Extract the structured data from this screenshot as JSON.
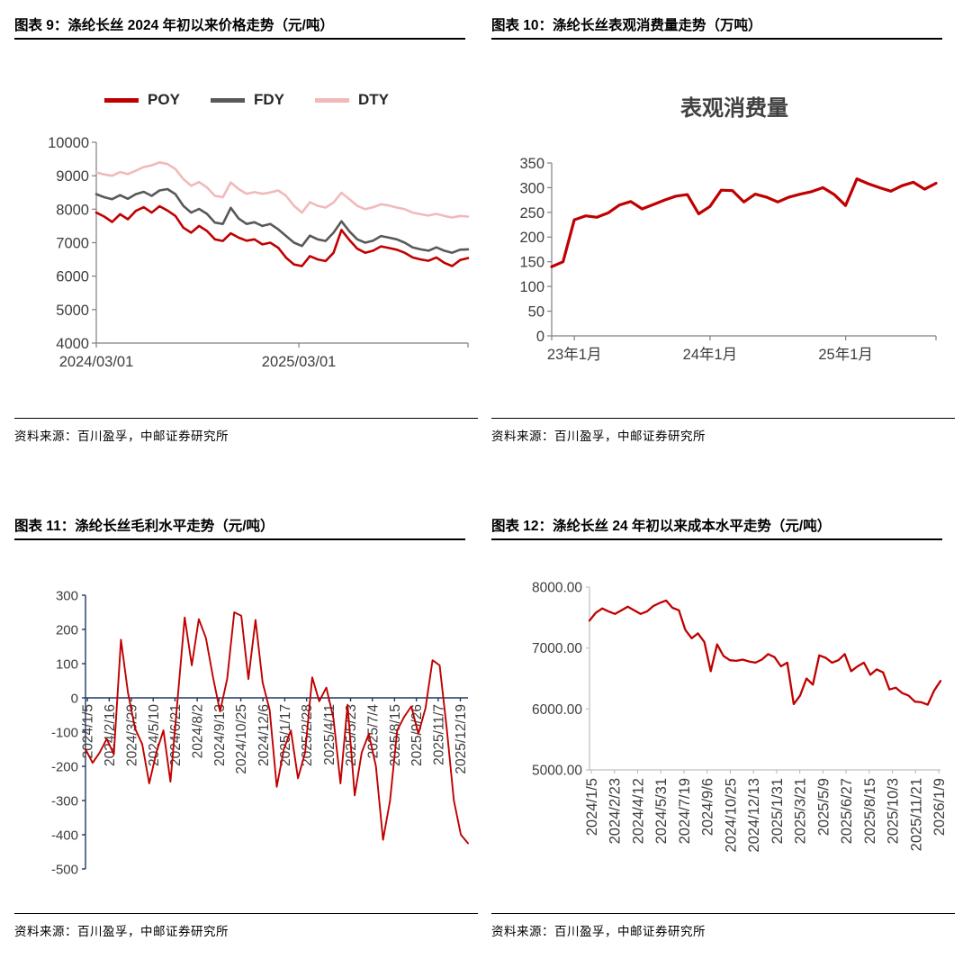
{
  "chart_data": [
    {
      "id": "figure-9",
      "caption": "图表 9：涤纶长丝 2024 年初以来价格走势（元/吨）",
      "source": "资料来源：百川盈孚，中邮证券研究所",
      "type": "line",
      "legend_position": "top",
      "ylim": [
        4000,
        10000
      ],
      "yticks": [
        10000,
        9000,
        8000,
        7000,
        6000,
        5000,
        4000
      ],
      "ytick_labels": [
        "10000",
        "9000",
        "8000",
        "7000",
        "6000",
        "5000",
        "4000"
      ],
      "xticks": [
        {
          "f": 0.0,
          "label": "2024/03/01"
        },
        {
          "f": 0.545,
          "label": "2025/03/01"
        },
        {
          "f": 1.0,
          "label": ""
        }
      ],
      "series": [
        {
          "name": "POY",
          "color": "#C00000",
          "values": [
            7900,
            7780,
            7620,
            7850,
            7700,
            7950,
            8060,
            7900,
            8090,
            7960,
            7800,
            7450,
            7300,
            7500,
            7350,
            7100,
            7050,
            7280,
            7150,
            7060,
            7100,
            6950,
            7000,
            6850,
            6550,
            6350,
            6300,
            6600,
            6500,
            6450,
            6700,
            7380,
            7080,
            6820,
            6700,
            6760,
            6890,
            6840,
            6790,
            6700,
            6560,
            6500,
            6460,
            6560,
            6400,
            6300,
            6480,
            6540
          ]
        },
        {
          "name": "FDY",
          "color": "#595959",
          "values": [
            8450,
            8360,
            8300,
            8420,
            8310,
            8450,
            8520,
            8400,
            8560,
            8600,
            8450,
            8100,
            7900,
            8010,
            7860,
            7600,
            7560,
            8040,
            7720,
            7560,
            7610,
            7500,
            7560,
            7400,
            7200,
            7000,
            6900,
            7210,
            7100,
            7050,
            7300,
            7640,
            7340,
            7100,
            7000,
            7060,
            7200,
            7150,
            7100,
            7000,
            6860,
            6800,
            6760,
            6860,
            6760,
            6700,
            6790,
            6800
          ]
        },
        {
          "name": "DTY",
          "color": "#F2B9B9",
          "values": [
            9100,
            9040,
            9000,
            9110,
            9050,
            9150,
            9260,
            9310,
            9400,
            9350,
            9200,
            8900,
            8700,
            8810,
            8650,
            8400,
            8360,
            8800,
            8600,
            8460,
            8510,
            8460,
            8500,
            8560,
            8400,
            8100,
            7900,
            8210,
            8100,
            8050,
            8200,
            8490,
            8300,
            8100,
            8000,
            8060,
            8150,
            8110,
            8050,
            8000,
            7900,
            7850,
            7810,
            7860,
            7800,
            7750,
            7800,
            7780
          ]
        }
      ]
    },
    {
      "id": "figure-10",
      "caption": "图表 10：涤纶长丝表观消费量走势（万吨）",
      "source": "资料来源：百川盈孚，中邮证券研究所",
      "type": "line",
      "inner_title": "表观消费量",
      "ylim": [
        0,
        350
      ],
      "yticks": [
        350,
        300,
        250,
        200,
        150,
        100,
        50,
        0
      ],
      "ytick_labels": [
        "350",
        "300",
        "250",
        "200",
        "150",
        "100",
        "50",
        "0"
      ],
      "xticks": [
        {
          "f": 0.0,
          "label": ""
        },
        {
          "f": 0.059,
          "label": "23年1月"
        },
        {
          "f": 0.412,
          "label": "24年1月"
        },
        {
          "f": 0.765,
          "label": "25年1月"
        },
        {
          "f": 1.0,
          "label": ""
        }
      ],
      "series": [
        {
          "name": "表观消费量",
          "color": "#C00000",
          "values": [
            140,
            150,
            235,
            243,
            240,
            249,
            265,
            272,
            257,
            266,
            275,
            283,
            286,
            247,
            262,
            295,
            294,
            271,
            287,
            281,
            271,
            281,
            287,
            292,
            300,
            286,
            264,
            318,
            308,
            300,
            293,
            304,
            311,
            297,
            309
          ]
        }
      ]
    },
    {
      "id": "figure-11",
      "caption": "图表 11：涤纶长丝毛利水平走势（元/吨）",
      "source": "资料来源：百川盈孚，中邮证券研究所",
      "type": "line",
      "ylim": [
        -500,
        300
      ],
      "baseline": 0,
      "yticks": [
        300,
        200,
        100,
        0,
        -100,
        -200,
        -300,
        -400,
        -500
      ],
      "ytick_labels": [
        "300",
        "200",
        "100",
        "0",
        "-100",
        "-200",
        "-300",
        "-400",
        "-500"
      ],
      "xticks": [
        {
          "f": 0.005,
          "label": "2024/1/5"
        },
        {
          "f": 0.062,
          "label": "2024/2/16"
        },
        {
          "f": 0.12,
          "label": "2024/3/29"
        },
        {
          "f": 0.177,
          "label": "2024/5/10"
        },
        {
          "f": 0.234,
          "label": "2024/6/21"
        },
        {
          "f": 0.292,
          "label": "2024/8/2"
        },
        {
          "f": 0.349,
          "label": "2024/9/13"
        },
        {
          "f": 0.406,
          "label": "2024/10/25"
        },
        {
          "f": 0.464,
          "label": "2024/12/6"
        },
        {
          "f": 0.521,
          "label": "2025/1/17"
        },
        {
          "f": 0.578,
          "label": "2025/2/28"
        },
        {
          "f": 0.636,
          "label": "2025/4/11"
        },
        {
          "f": 0.693,
          "label": "2025/5/23"
        },
        {
          "f": 0.75,
          "label": "2025/7/4"
        },
        {
          "f": 0.808,
          "label": "2025/8/15"
        },
        {
          "f": 0.865,
          "label": "2025/9/26"
        },
        {
          "f": 0.922,
          "label": "2025/11/7"
        },
        {
          "f": 0.98,
          "label": "2025/12/19"
        }
      ],
      "series": [
        {
          "name": "毛利",
          "color": "#C00000",
          "values": [
            -150,
            -190,
            -160,
            -120,
            -165,
            170,
            15,
            -90,
            -135,
            -250,
            -160,
            -95,
            -245,
            -5,
            235,
            95,
            230,
            175,
            60,
            -40,
            55,
            250,
            240,
            55,
            228,
            45,
            -35,
            -260,
            -150,
            -95,
            -235,
            -160,
            60,
            -10,
            30,
            -60,
            -250,
            -20,
            -285,
            -160,
            -105,
            -200,
            -415,
            -300,
            -95,
            -55,
            -25,
            -105,
            -30,
            110,
            95,
            -90,
            -300,
            -400,
            -425
          ]
        }
      ]
    },
    {
      "id": "figure-12",
      "caption": "图表 12：涤纶长丝 24 年初以来成本水平走势（元/吨）",
      "source": "资料来源：百川盈孚，中邮证券研究所",
      "type": "line",
      "ylim": [
        5000,
        8000
      ],
      "yticks": [
        8000,
        7000,
        6000,
        5000
      ],
      "ytick_labels": [
        "8000.00",
        "7000.00",
        "6000.00",
        "5000.00"
      ],
      "xticks": [
        {
          "f": 0.005,
          "label": "2024/1/5"
        },
        {
          "f": 0.071,
          "label": "2024/2/23"
        },
        {
          "f": 0.137,
          "label": "2024/4/12"
        },
        {
          "f": 0.203,
          "label": "2024/5/31"
        },
        {
          "f": 0.269,
          "label": "2024/7/19"
        },
        {
          "f": 0.335,
          "label": "2024/9/6"
        },
        {
          "f": 0.401,
          "label": "2024/10/25"
        },
        {
          "f": 0.467,
          "label": "2024/12/13"
        },
        {
          "f": 0.533,
          "label": "2025/1/31"
        },
        {
          "f": 0.599,
          "label": "2025/3/21"
        },
        {
          "f": 0.665,
          "label": "2025/5/9"
        },
        {
          "f": 0.731,
          "label": "2025/6/27"
        },
        {
          "f": 0.797,
          "label": "2025/8/15"
        },
        {
          "f": 0.863,
          "label": "2025/10/3"
        },
        {
          "f": 0.929,
          "label": "2025/11/21"
        },
        {
          "f": 0.995,
          "label": "2026/1/9"
        }
      ],
      "series": [
        {
          "name": "成本",
          "color": "#C00000",
          "values": [
            7450,
            7580,
            7650,
            7600,
            7560,
            7620,
            7680,
            7620,
            7560,
            7600,
            7690,
            7740,
            7780,
            7660,
            7620,
            7300,
            7160,
            7240,
            7100,
            6620,
            7060,
            6870,
            6800,
            6790,
            6810,
            6780,
            6760,
            6810,
            6900,
            6850,
            6700,
            6760,
            6080,
            6220,
            6500,
            6400,
            6880,
            6840,
            6760,
            6800,
            6900,
            6620,
            6700,
            6760,
            6560,
            6650,
            6600,
            6320,
            6350,
            6260,
            6220,
            6120,
            6110,
            6070,
            6300,
            6460
          ]
        }
      ]
    }
  ]
}
